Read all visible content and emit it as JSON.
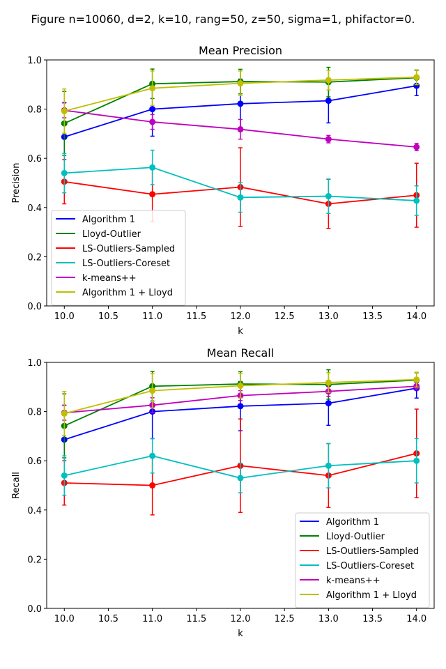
{
  "figure": {
    "suptitle": "Figure n=10060, d=2, k=10, rang=50, z=50, sigma=1, phifactor=0."
  },
  "chart_data": [
    {
      "type": "line",
      "title": "Mean Precision",
      "xlabel": "k",
      "ylabel": "Precision",
      "xlim": [
        9.8,
        14.2
      ],
      "ylim": [
        0.0,
        1.0
      ],
      "xticks": [
        "10.0",
        "10.5",
        "11.0",
        "11.5",
        "12.0",
        "12.5",
        "13.0",
        "13.5",
        "14.0"
      ],
      "yticks": [
        "0.0",
        "0.2",
        "0.4",
        "0.6",
        "0.8",
        "1.0"
      ],
      "legend_position": "lower-left",
      "x": [
        10,
        11,
        12,
        13,
        14
      ],
      "series": [
        {
          "name": "Algorithm 1",
          "color": "#0000ff",
          "values": [
            0.687,
            0.8,
            0.822,
            0.834,
            0.895
          ],
          "errors": [
            0.14,
            0.11,
            0.1,
            0.09,
            0.04
          ]
        },
        {
          "name": "Lloyd-Outlier",
          "color": "#008000",
          "values": [
            0.742,
            0.903,
            0.912,
            0.91,
            0.928
          ],
          "errors": [
            0.13,
            0.06,
            0.05,
            0.06,
            0.03
          ]
        },
        {
          "name": "LS-Outliers-Sampled",
          "color": "#ff0000",
          "values": [
            0.505,
            0.454,
            0.483,
            0.415,
            0.45
          ],
          "errors": [
            0.09,
            0.11,
            0.16,
            0.1,
            0.13
          ]
        },
        {
          "name": "LS-Outliers-Coreset",
          "color": "#00bfbf",
          "values": [
            0.54,
            0.563,
            0.441,
            0.446,
            0.428
          ],
          "errors": [
            0.08,
            0.07,
            0.06,
            0.07,
            0.06
          ]
        },
        {
          "name": "k-means++",
          "color": "#bf00bf",
          "values": [
            0.795,
            0.748,
            0.718,
            0.678,
            0.646
          ],
          "errors": [
            0.03,
            0.03,
            0.04,
            0.015,
            0.015
          ]
        },
        {
          "name": "Algorithm 1 + Lloyd",
          "color": "#bfbf00",
          "values": [
            0.792,
            0.885,
            0.905,
            0.918,
            0.93
          ],
          "errors": [
            0.09,
            0.07,
            0.05,
            0.04,
            0.03
          ]
        }
      ]
    },
    {
      "type": "line",
      "title": "Mean Recall",
      "xlabel": "k",
      "ylabel": "Recall",
      "xlim": [
        9.8,
        14.2
      ],
      "ylim": [
        0.0,
        1.0
      ],
      "xticks": [
        "10.0",
        "10.5",
        "11.0",
        "11.5",
        "12.0",
        "12.5",
        "13.0",
        "13.5",
        "14.0"
      ],
      "yticks": [
        "0.0",
        "0.2",
        "0.4",
        "0.6",
        "0.8",
        "1.0"
      ],
      "legend_position": "lower-right",
      "x": [
        10,
        11,
        12,
        13,
        14
      ],
      "series": [
        {
          "name": "Algorithm 1",
          "color": "#0000ff",
          "values": [
            0.686,
            0.8,
            0.822,
            0.834,
            0.895
          ],
          "errors": [
            0.14,
            0.11,
            0.1,
            0.09,
            0.04
          ]
        },
        {
          "name": "Lloyd-Outlier",
          "color": "#008000",
          "values": [
            0.742,
            0.903,
            0.912,
            0.91,
            0.928
          ],
          "errors": [
            0.13,
            0.06,
            0.05,
            0.06,
            0.03
          ]
        },
        {
          "name": "LS-Outliers-Sampled",
          "color": "#ff0000",
          "values": [
            0.51,
            0.5,
            0.58,
            0.54,
            0.63
          ],
          "errors": [
            0.09,
            0.12,
            0.19,
            0.13,
            0.18
          ]
        },
        {
          "name": "LS-Outliers-Coreset",
          "color": "#00bfbf",
          "values": [
            0.54,
            0.62,
            0.53,
            0.58,
            0.6
          ],
          "errors": [
            0.08,
            0.07,
            0.06,
            0.09,
            0.09
          ]
        },
        {
          "name": "k-means++",
          "color": "#bf00bf",
          "values": [
            0.795,
            0.826,
            0.865,
            0.882,
            0.903
          ],
          "errors": [
            0.03,
            0.03,
            0.02,
            0.02,
            0.015
          ]
        },
        {
          "name": "Algorithm 1 + Lloyd",
          "color": "#bfbf00",
          "values": [
            0.792,
            0.885,
            0.905,
            0.918,
            0.93
          ],
          "errors": [
            0.09,
            0.07,
            0.05,
            0.04,
            0.03
          ]
        }
      ]
    }
  ]
}
